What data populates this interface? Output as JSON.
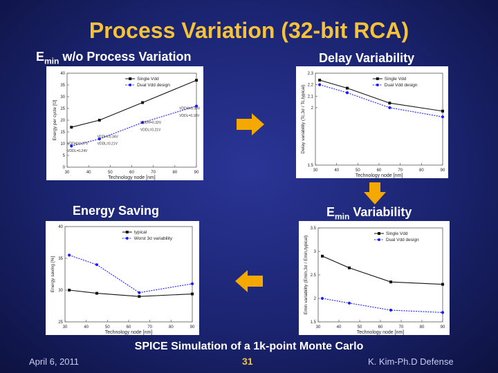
{
  "slide": {
    "title": "Process Variation (32-bit RCA)",
    "label_emin_prefix": "E",
    "label_emin_sub": "min",
    "label_emin_rest": " w/o  Process Variation",
    "label_delay": "Delay Variability",
    "label_saving": "Energy Saving",
    "label_emin_var_prefix": "E",
    "label_emin_var_sub": "min",
    "label_emin_var_rest": " Variability",
    "caption": "SPICE Simulation of a 1k-point Monte Carlo",
    "date": "April 6, 2011",
    "page": "31",
    "author": "K. Kim-Ph.D Defense"
  },
  "colors": {
    "title": "#f5c23a",
    "arrow": "#f5a800",
    "series_solid": "#111111",
    "series_dual": "#1a1aff"
  },
  "chart_data": [
    {
      "type": "line",
      "panel": "emin",
      "xlabel": "Technology node [nm]",
      "ylabel": "Energy per cycle [fJ]",
      "x": [
        32,
        45,
        65,
        90
      ],
      "xticks": [
        30,
        40,
        50,
        60,
        70,
        80,
        90
      ],
      "ylim": [
        0,
        40
      ],
      "yticks": [
        0,
        5,
        10,
        15,
        20,
        25,
        30,
        35,
        40
      ],
      "series": [
        {
          "name": "Single Vdd",
          "style": "solid",
          "values": [
            17,
            20,
            27.5,
            37
          ]
        },
        {
          "name": "Dual Vdd design",
          "style": "dotted",
          "values": [
            9,
            12,
            19,
            26
          ]
        }
      ],
      "annotations": [
        {
          "text": "VDDH=0.37V",
          "x": 30,
          "y": 9.5
        },
        {
          "text": "VDDL=0.24V",
          "x": 30,
          "y": 6.5
        },
        {
          "text": "VDDH=0.34V",
          "x": 44,
          "y": 12.5
        },
        {
          "text": "VDDL=0.21V",
          "x": 44,
          "y": 9.5
        },
        {
          "text": "VDDH=0.32V",
          "x": 64,
          "y": 18.5
        },
        {
          "text": "VDDL=0.21V",
          "x": 64,
          "y": 15.5
        },
        {
          "text": "VDDH=0.30V",
          "x": 82,
          "y": 24.5
        },
        {
          "text": "VDDL=0.18V",
          "x": 82,
          "y": 21.5
        }
      ]
    },
    {
      "type": "line",
      "panel": "delay",
      "xlabel": "Technology node [nm]",
      "ylabel": "Delay variability (Tc,3σ / Tc,typical)",
      "x": [
        32,
        45,
        65,
        90
      ],
      "xticks": [
        30,
        40,
        50,
        60,
        70,
        80,
        90
      ],
      "ylim": [
        1.5,
        2.3
      ],
      "yticks": [
        1.5,
        2.0,
        2.1,
        2.2,
        2.3
      ],
      "series": [
        {
          "name": "Single Vdd",
          "style": "solid",
          "values": [
            2.24,
            2.17,
            2.04,
            1.97
          ]
        },
        {
          "name": "Dual Vdd design",
          "style": "dotted",
          "values": [
            2.2,
            2.13,
            2.0,
            1.92
          ]
        }
      ]
    },
    {
      "type": "line",
      "panel": "saving",
      "xlabel": "Technology node [nm]",
      "ylabel": "Energy saving [%]",
      "x": [
        32,
        45,
        65,
        90
      ],
      "xticks": [
        30,
        40,
        50,
        60,
        70,
        80,
        90
      ],
      "ylim": [
        25,
        40
      ],
      "yticks": [
        25,
        30,
        35,
        40
      ],
      "series": [
        {
          "name": "typical",
          "style": "solid",
          "values": [
            30.0,
            29.5,
            29.0,
            29.4
          ]
        },
        {
          "name": "Worst 3σ variability",
          "style": "dotted",
          "values": [
            35.5,
            34.0,
            29.6,
            31.0
          ]
        }
      ]
    },
    {
      "type": "line",
      "panel": "emin_var",
      "xlabel": "Technology node [nm]",
      "ylabel": "Emin variability (Emin,3σ / Emin,typical)",
      "x": [
        32,
        45,
        65,
        90
      ],
      "xticks": [
        30,
        40,
        50,
        60,
        70,
        80,
        90
      ],
      "ylim": [
        1.5,
        3.5
      ],
      "yticks": [
        1.5,
        2.0,
        2.5,
        3.0,
        3.5
      ],
      "series": [
        {
          "name": "Single Vdd",
          "style": "solid",
          "values": [
            2.9,
            2.65,
            2.35,
            2.3
          ]
        },
        {
          "name": "Dual Vdd design",
          "style": "dotted",
          "values": [
            2.0,
            1.9,
            1.75,
            1.7
          ]
        }
      ]
    }
  ]
}
